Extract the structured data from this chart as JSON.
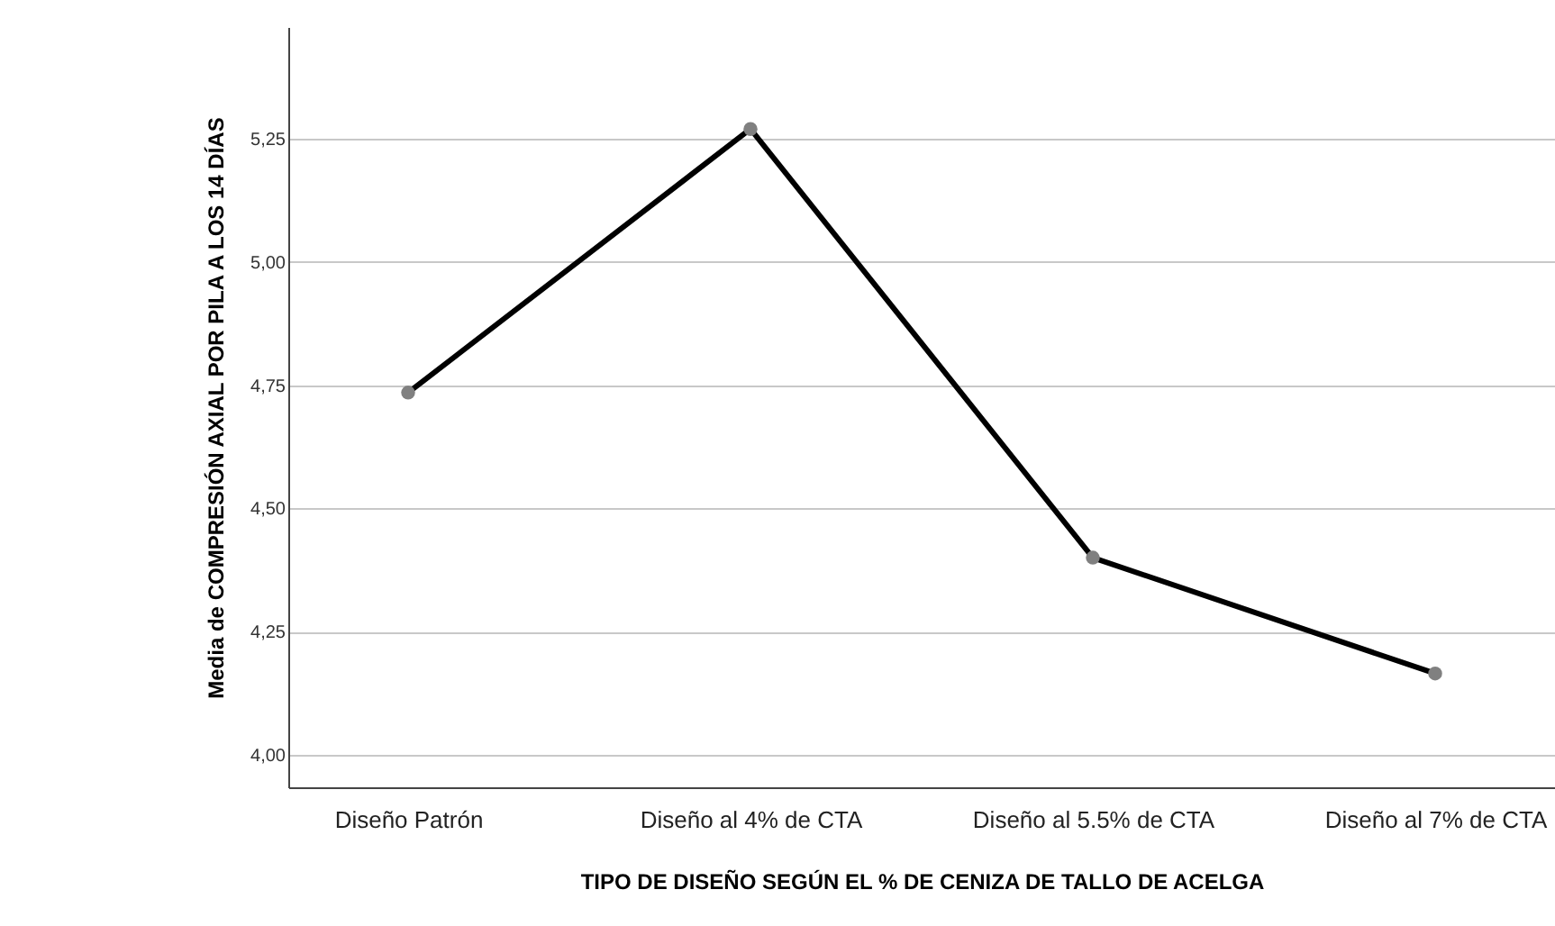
{
  "chart_data": {
    "type": "line",
    "xlabel": "TIPO DE DISEÑO SEGÚN EL % DE CENIZA DE TALLO DE ACELGA",
    "ylabel": "Media de COMPRESIÓN AXIAL POR PILA A LOS 14 DÍAS",
    "categories": [
      "Diseño Patrón",
      "Diseño al 4% de CTA",
      "Diseño al 5.5% de CTA",
      "Diseño al 7% de CTA"
    ],
    "series": [
      {
        "color": "#000000",
        "values": [
          4.735,
          5.27,
          4.4,
          4.165
        ]
      }
    ],
    "ylim": [
      3.934,
      5.477
    ],
    "yticks": [
      {
        "value": 4,
        "label": "4,00"
      },
      {
        "value": 4.25,
        "label": "4,25"
      },
      {
        "value": 4.5,
        "label": "4,50"
      },
      {
        "value": 4.75,
        "label": "4,75"
      },
      {
        "value": 5,
        "label": "5,00"
      },
      {
        "value": 5.25,
        "label": "5,25"
      }
    ],
    "grid": "y",
    "marker": "circle",
    "line_style": "solid"
  }
}
